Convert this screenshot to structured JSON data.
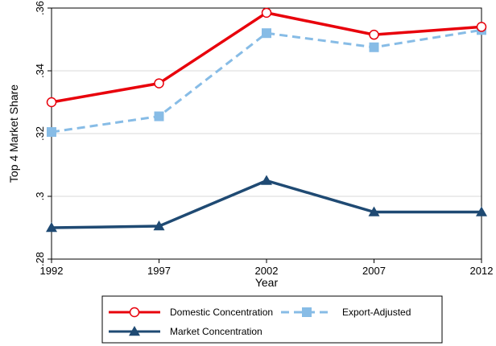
{
  "chart_data": {
    "type": "line",
    "x": [
      1992,
      1997,
      2002,
      2007,
      2012
    ],
    "xlabel": "Year",
    "ylabel": "Top 4 Market Share",
    "xlim": [
      1992,
      2012
    ],
    "ylim": [
      0.28,
      0.36
    ],
    "x_ticks": [
      1992,
      1997,
      2002,
      2007,
      2012
    ],
    "y_ticks": [
      0.28,
      0.3,
      0.32,
      0.34,
      0.36
    ],
    "y_tick_labels": [
      ".28",
      ".3",
      ".32",
      ".34",
      ".36"
    ],
    "grid": "horizontal",
    "legend_position": "bottom",
    "series": [
      {
        "name": "Domestic Concentration",
        "values": [
          0.33,
          0.336,
          0.3585,
          0.3515,
          0.354
        ],
        "color": "#e8000b",
        "line_style": "solid",
        "marker": "hollow-circle"
      },
      {
        "name": "Export-Adjusted",
        "values": [
          0.3205,
          0.3255,
          0.352,
          0.3475,
          0.353
        ],
        "color": "#87bce6",
        "line_style": "dashed",
        "marker": "square"
      },
      {
        "name": "Market Concentration",
        "values": [
          0.29,
          0.2905,
          0.305,
          0.295,
          0.295
        ],
        "color": "#1f4a73",
        "line_style": "solid",
        "marker": "triangle"
      }
    ]
  }
}
